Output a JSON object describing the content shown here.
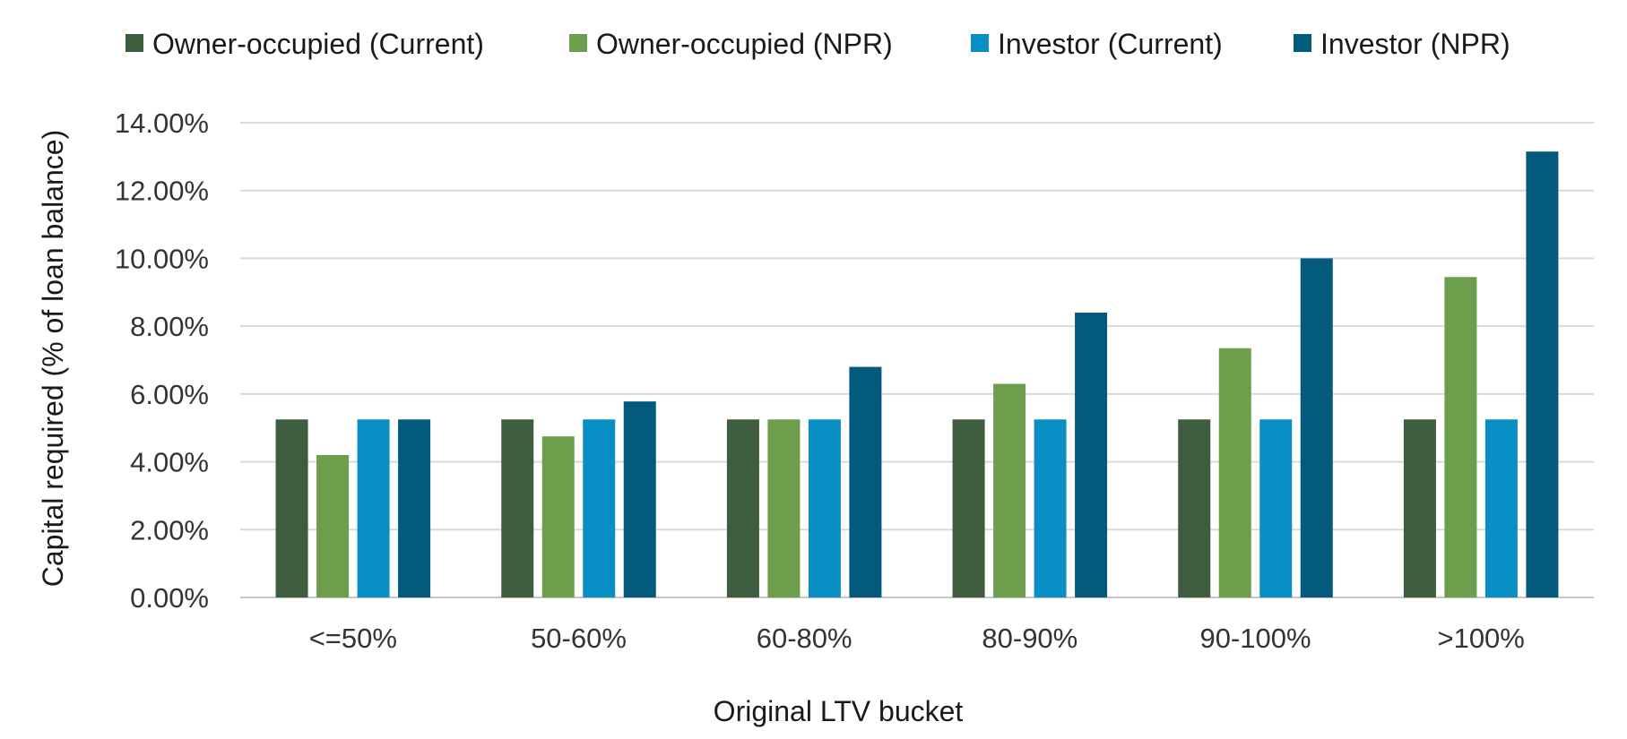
{
  "chart_data": {
    "type": "bar",
    "title": "",
    "xlabel": "Original LTV bucket",
    "ylabel": "Capital required (% of loan balance)",
    "categories": [
      "<=50%",
      "50-60%",
      "60-80%",
      "80-90%",
      "90-100%",
      ">100%"
    ],
    "ylim": [
      0,
      14
    ],
    "yticks": [
      "0.00%",
      "2.00%",
      "4.00%",
      "6.00%",
      "8.00%",
      "10.00%",
      "12.00%",
      "14.00%"
    ],
    "grid": true,
    "legend_position": "top",
    "series": [
      {
        "name": "Owner-occupied (Current)",
        "color": "#3e5c3e",
        "values": [
          5.25,
          5.25,
          5.25,
          5.25,
          5.25,
          5.25
        ]
      },
      {
        "name": "Owner-occupied (NPR)",
        "color": "#6d9e4b",
        "values": [
          4.2,
          4.75,
          5.25,
          6.3,
          7.35,
          9.45
        ]
      },
      {
        "name": "Investor (Current)",
        "color": "#0a8fc4",
        "values": [
          5.25,
          5.25,
          5.25,
          5.25,
          5.25,
          5.25
        ]
      },
      {
        "name": "Investor (NPR)",
        "color": "#035a7d",
        "values": [
          5.25,
          5.78,
          6.8,
          8.4,
          10.0,
          13.15
        ]
      }
    ]
  }
}
